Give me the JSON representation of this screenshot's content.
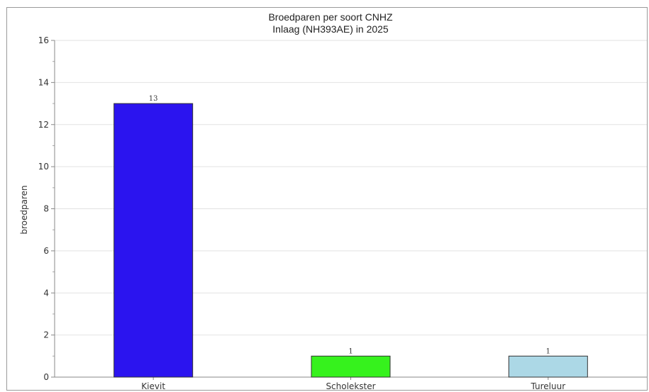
{
  "chart_data": {
    "type": "bar",
    "title": [
      "Broedparen per soort CNHZ",
      "Inlaag (NH393AE) in 2025"
    ],
    "xlabel": "",
    "ylabel": "broedparen",
    "ylim": [
      0,
      16
    ],
    "yticks": [
      0,
      2,
      4,
      6,
      8,
      10,
      12,
      14,
      16
    ],
    "grid": true,
    "categories": [
      "Kievit",
      "Scholekster",
      "Tureluur"
    ],
    "values": [
      13,
      1,
      1
    ],
    "data_labels": [
      "13",
      "1",
      "1"
    ],
    "colors": [
      "#2b14ef",
      "#36f21d",
      "#acd8e6"
    ]
  }
}
